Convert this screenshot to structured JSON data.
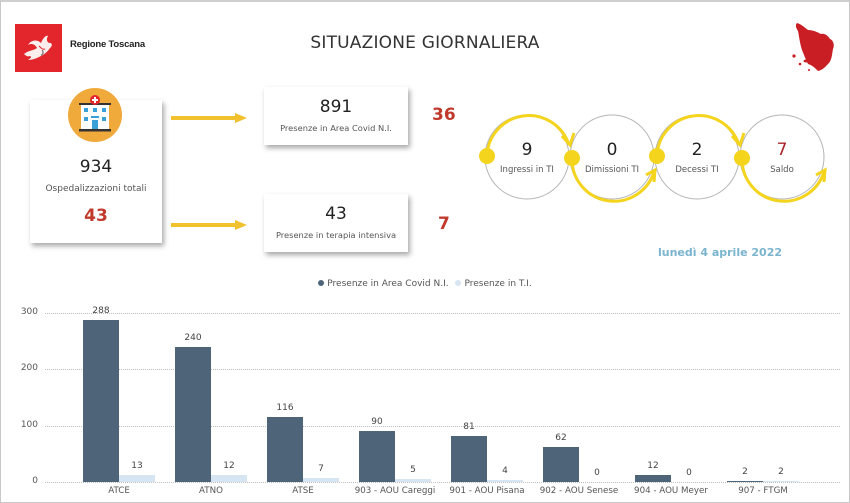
{
  "header": {
    "logo_text": "Regione Toscana",
    "title": "SITUAZIONE GIORNALIERA",
    "logo_icon": "pegasus-icon",
    "map_icon": "tuscany-map-icon"
  },
  "colors": {
    "brand_red": "#e3262c",
    "delta_red": "#c0392b",
    "arrow_yellow": "#f2c12e",
    "flow_yellow": "#f4d41c",
    "bar_dark": "#4e6478",
    "bar_light": "#d6e5f2",
    "date_blue": "#7ab4ce",
    "hospital_orange": "#f0a93b"
  },
  "kpis": {
    "total": {
      "value": "934",
      "label": "Ospedalizzazioni totali",
      "delta": "43",
      "icon": "hospital-icon"
    },
    "covid_area": {
      "value": "891",
      "label": "Presenze in Area Covid N.I.",
      "delta": "36"
    },
    "intensive_care": {
      "value": "43",
      "label": "Presenze in terapia intensiva",
      "delta": "7"
    }
  },
  "flow": [
    {
      "value": "9",
      "label": "Ingressi in TI"
    },
    {
      "value": "0",
      "label": "Dimissioni TI"
    },
    {
      "value": "2",
      "label": "Decessi TI"
    },
    {
      "value": "7",
      "label": "Saldo"
    }
  ],
  "date": "lunedì 4 aprile 2022",
  "chart_data": {
    "type": "bar",
    "title": "",
    "xlabel": "",
    "ylabel": "",
    "ylim": [
      0,
      300
    ],
    "yticks": [
      "0",
      "100",
      "200",
      "300"
    ],
    "grid": true,
    "legend_position": "top-center",
    "categories": [
      "ATCE",
      "ATNO",
      "ATSE",
      "903 - AOU Careggi",
      "901 - AOU Pisana",
      "902 - AOU Senese",
      "904 - AOU Meyer",
      "907 - FTGM"
    ],
    "series": [
      {
        "name": "Presenze in Area Covid N.I.",
        "color": "#4e6478",
        "values": [
          288,
          240,
          116,
          90,
          81,
          62,
          12,
          2
        ]
      },
      {
        "name": "Presenze in T.I.",
        "color": "#d6e5f2",
        "values": [
          13,
          12,
          7,
          5,
          4,
          0,
          0,
          2
        ]
      }
    ]
  }
}
